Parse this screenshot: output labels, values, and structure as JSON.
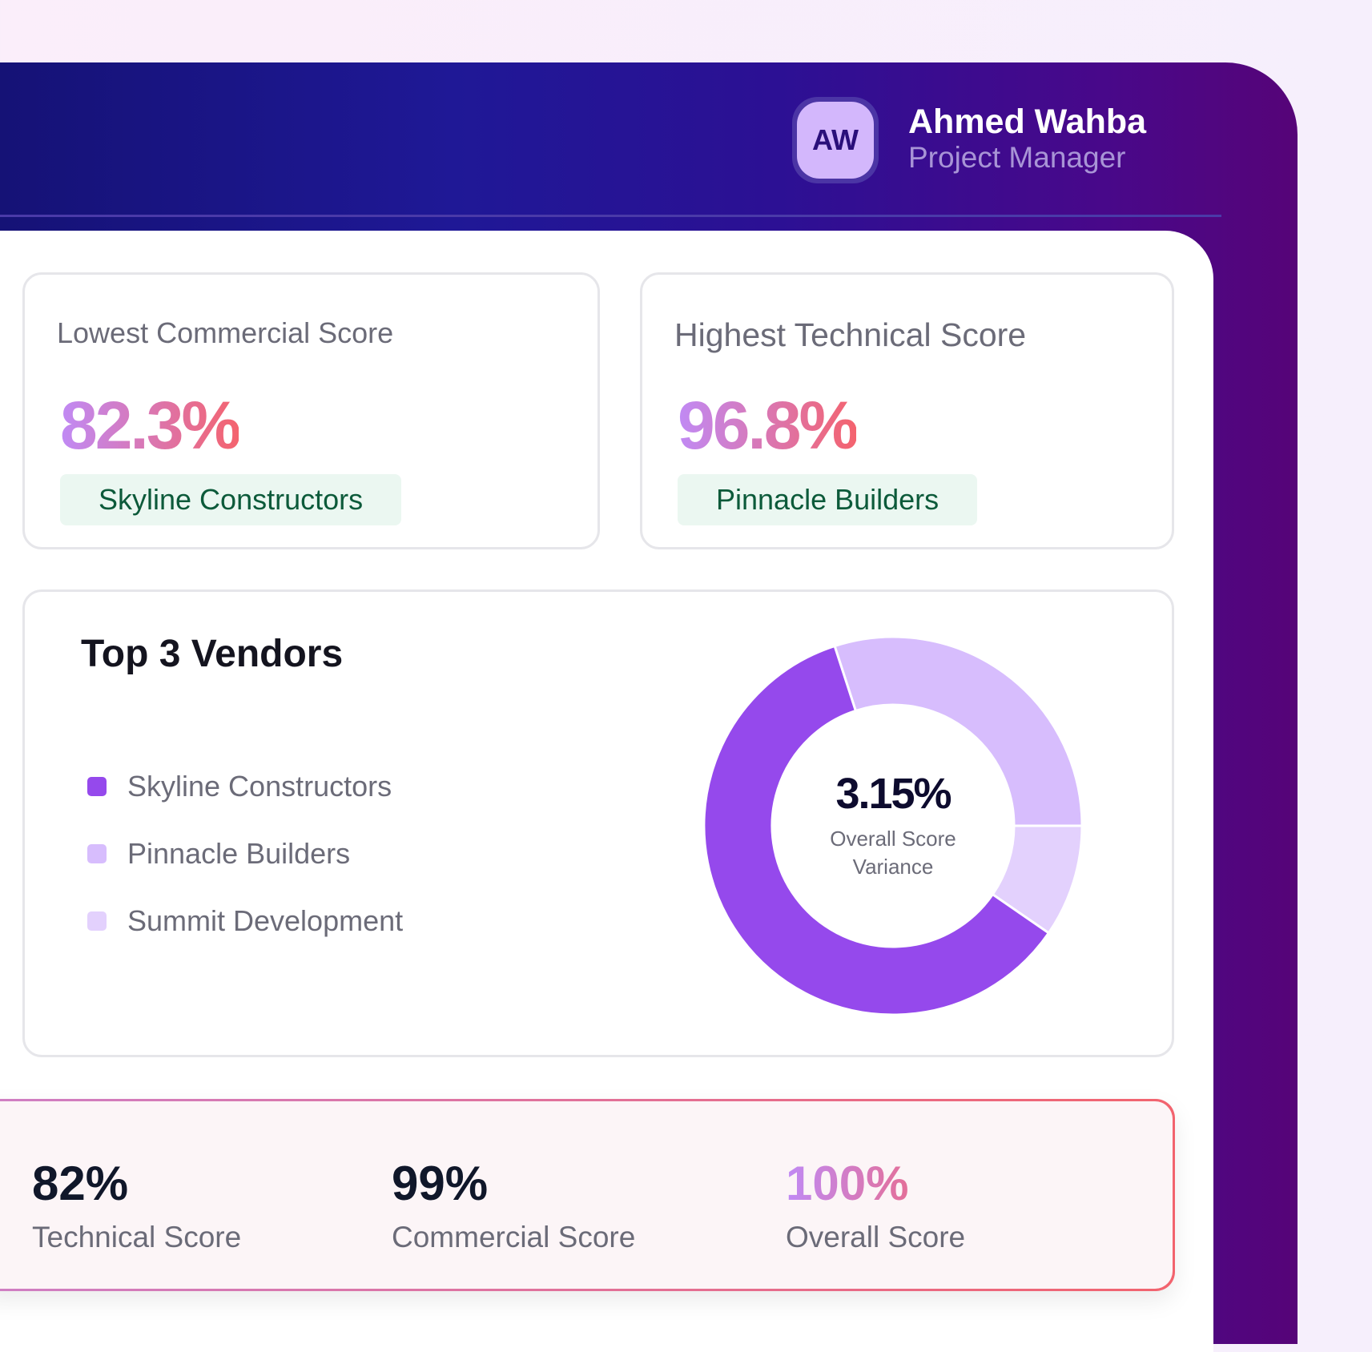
{
  "user": {
    "initials": "AW",
    "name": "Ahmed Wahba",
    "role": "Project Manager"
  },
  "cards": [
    {
      "title": "Lowest Commercial Score",
      "value": "82.3%",
      "vendor": "Skyline Constructors"
    },
    {
      "title": "Highest Technical Score",
      "value": "96.8%",
      "vendor": "Pinnacle Builders"
    }
  ],
  "vendors": {
    "title": "Top 3 Vendors",
    "center_value": "3.15%",
    "center_label_1": "Overall Score",
    "center_label_2": "Variance"
  },
  "chart_data": {
    "type": "pie",
    "donut": true,
    "title": "Top 3 Vendors",
    "categories": [
      "Skyline Constructors",
      "Pinnacle Builders",
      "Summit Development"
    ],
    "values": [
      60.4,
      30.0,
      9.6
    ],
    "colors": [
      "#9549ec",
      "#d7bdfd",
      "#e3d1fd"
    ],
    "legend": "left"
  },
  "summary": [
    {
      "value": "82%",
      "label": "Technical Score"
    },
    {
      "value": "99%",
      "label": "Commercial Score"
    },
    {
      "value": "100%",
      "label": "Overall Score"
    }
  ]
}
